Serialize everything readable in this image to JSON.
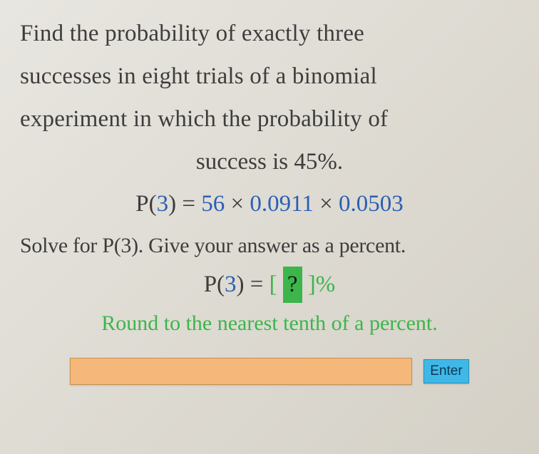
{
  "problem": {
    "line1": "Find the probability of exactly three",
    "line2": "successes in eight trials of a binomial",
    "line3": "experiment in which the probability of",
    "line4": "success is 45%."
  },
  "formula": {
    "lhs": "P(",
    "k": "3",
    "paren_close": ") = ",
    "coeff": "56",
    "times1": " × ",
    "val1": "0.0911",
    "times2": " × ",
    "val2": "0.0503"
  },
  "solve_line": "Solve for P(3). Give your answer as a percent.",
  "answer": {
    "lhs": "P(",
    "k": "3",
    "paren_close": ") = ",
    "open_br": "[ ",
    "q": "?",
    "close_br": " ]",
    "pct": "%"
  },
  "round_line": "Round to the nearest tenth of a percent.",
  "input_value": "",
  "enter_label": "Enter",
  "colors": {
    "blue": "#2a5fb5",
    "green": "#3cb54a",
    "highlight_bg": "#3cb54a",
    "input_bg": "#f5b77a",
    "button_bg": "#3fb8e8",
    "text": "#3d3d3d",
    "page_bg": "#e0ddd5"
  }
}
